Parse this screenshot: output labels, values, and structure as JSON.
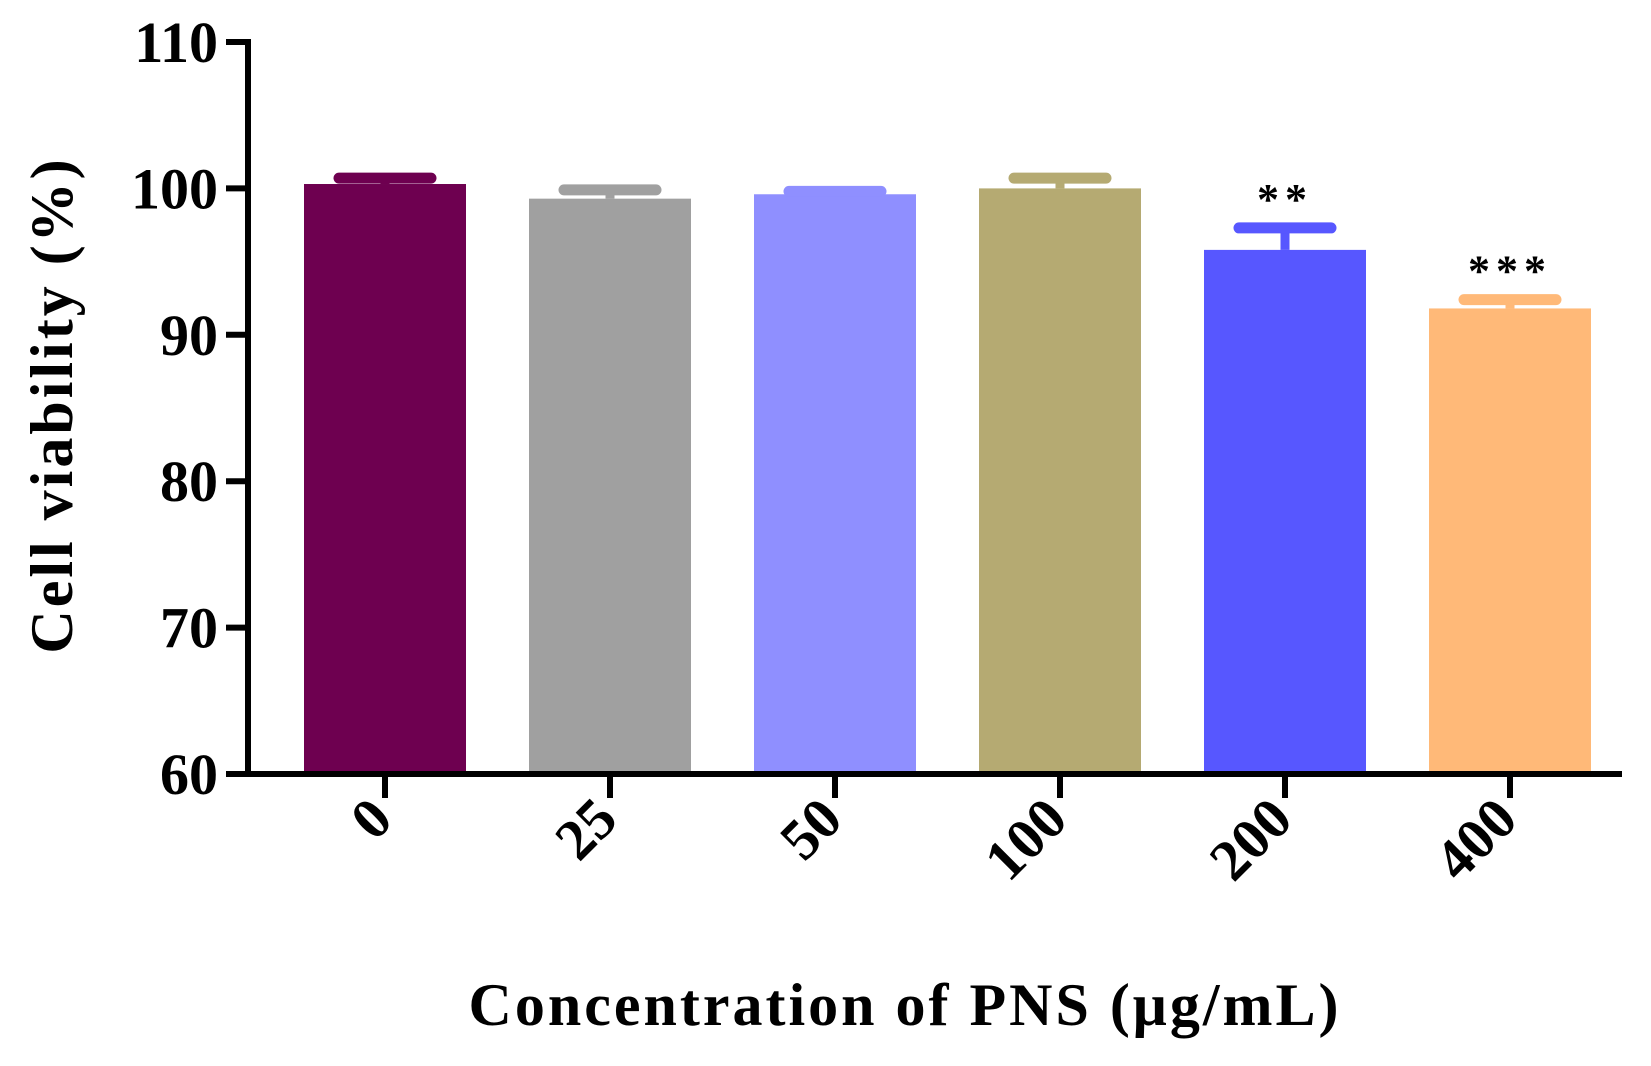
{
  "chart_data": {
    "type": "bar",
    "title": "",
    "xlabel": "Concentration of PNS (μg/mL)",
    "ylabel": "Cell viability (%)",
    "categories": [
      "0",
      "25",
      "50",
      "100",
      "200",
      "400"
    ],
    "values": [
      100.3,
      99.3,
      99.6,
      100.0,
      95.8,
      91.8
    ],
    "errors": [
      0.4,
      0.6,
      0.2,
      0.7,
      1.5,
      0.6
    ],
    "annotations": [
      "",
      "",
      "",
      "",
      "**",
      "***"
    ],
    "colors": [
      "#6E0050",
      "#A0A0A0",
      "#8F8FFF",
      "#B5AA72",
      "#5757FF",
      "#FFB978"
    ],
    "ylim": [
      60,
      110
    ],
    "yticks": [
      60,
      70,
      80,
      90,
      100,
      110
    ],
    "grid": false,
    "legend": "none"
  }
}
